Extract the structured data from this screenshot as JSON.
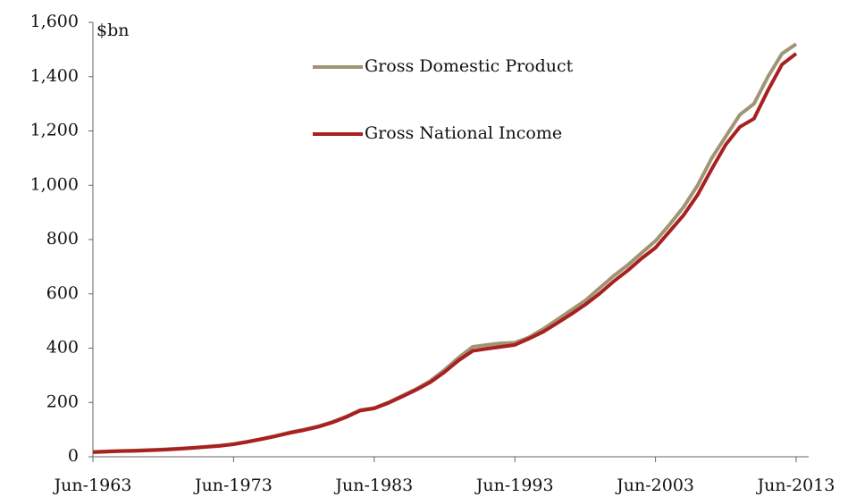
{
  "chart_data": {
    "type": "line",
    "y_label": "$bn",
    "categories": [
      "Jun-1963",
      null,
      null,
      null,
      null,
      null,
      null,
      null,
      null,
      null,
      "Jun-1973",
      null,
      null,
      null,
      null,
      null,
      null,
      null,
      null,
      null,
      "Jun-1983",
      null,
      null,
      null,
      null,
      null,
      null,
      null,
      null,
      null,
      "Jun-1993",
      null,
      null,
      null,
      null,
      null,
      null,
      null,
      null,
      null,
      "Jun-2003",
      null,
      null,
      null,
      null,
      null,
      null,
      null,
      null,
      null,
      "Jun-2013"
    ],
    "series": [
      {
        "name": "Gross Domestic Product",
        "color": "#a09474",
        "values": [
          18,
          20,
          22,
          23,
          25,
          27,
          30,
          33,
          37,
          41,
          47,
          56,
          66,
          77,
          90,
          100,
          112,
          128,
          148,
          172,
          180,
          200,
          225,
          250,
          280,
          320,
          365,
          405,
          412,
          418,
          420,
          440,
          470,
          505,
          540,
          575,
          620,
          665,
          705,
          750,
          795,
          855,
          920,
          1000,
          1100,
          1180,
          1260,
          1300,
          1400,
          1485,
          1520
        ]
      },
      {
        "name": "Gross National Income",
        "color": "#a8201f",
        "values": [
          17,
          19,
          21,
          22,
          24,
          26,
          29,
          32,
          36,
          40,
          46,
          55,
          65,
          76,
          88,
          98,
          110,
          126,
          146,
          170,
          178,
          198,
          222,
          247,
          275,
          312,
          355,
          390,
          398,
          405,
          412,
          435,
          460,
          492,
          525,
          560,
          600,
          645,
          685,
          730,
          770,
          830,
          890,
          965,
          1060,
          1150,
          1215,
          1245,
          1350,
          1445,
          1485
        ]
      }
    ],
    "ylim": [
      0,
      1600
    ],
    "yticks": [
      0,
      200,
      400,
      600,
      800,
      {
        "value": 1000,
        "label": "1,000"
      },
      {
        "value": 1200,
        "label": "1,200"
      },
      {
        "value": 1400,
        "label": "1,400"
      },
      {
        "value": 1600,
        "label": "1,600"
      }
    ],
    "legend": "top"
  }
}
